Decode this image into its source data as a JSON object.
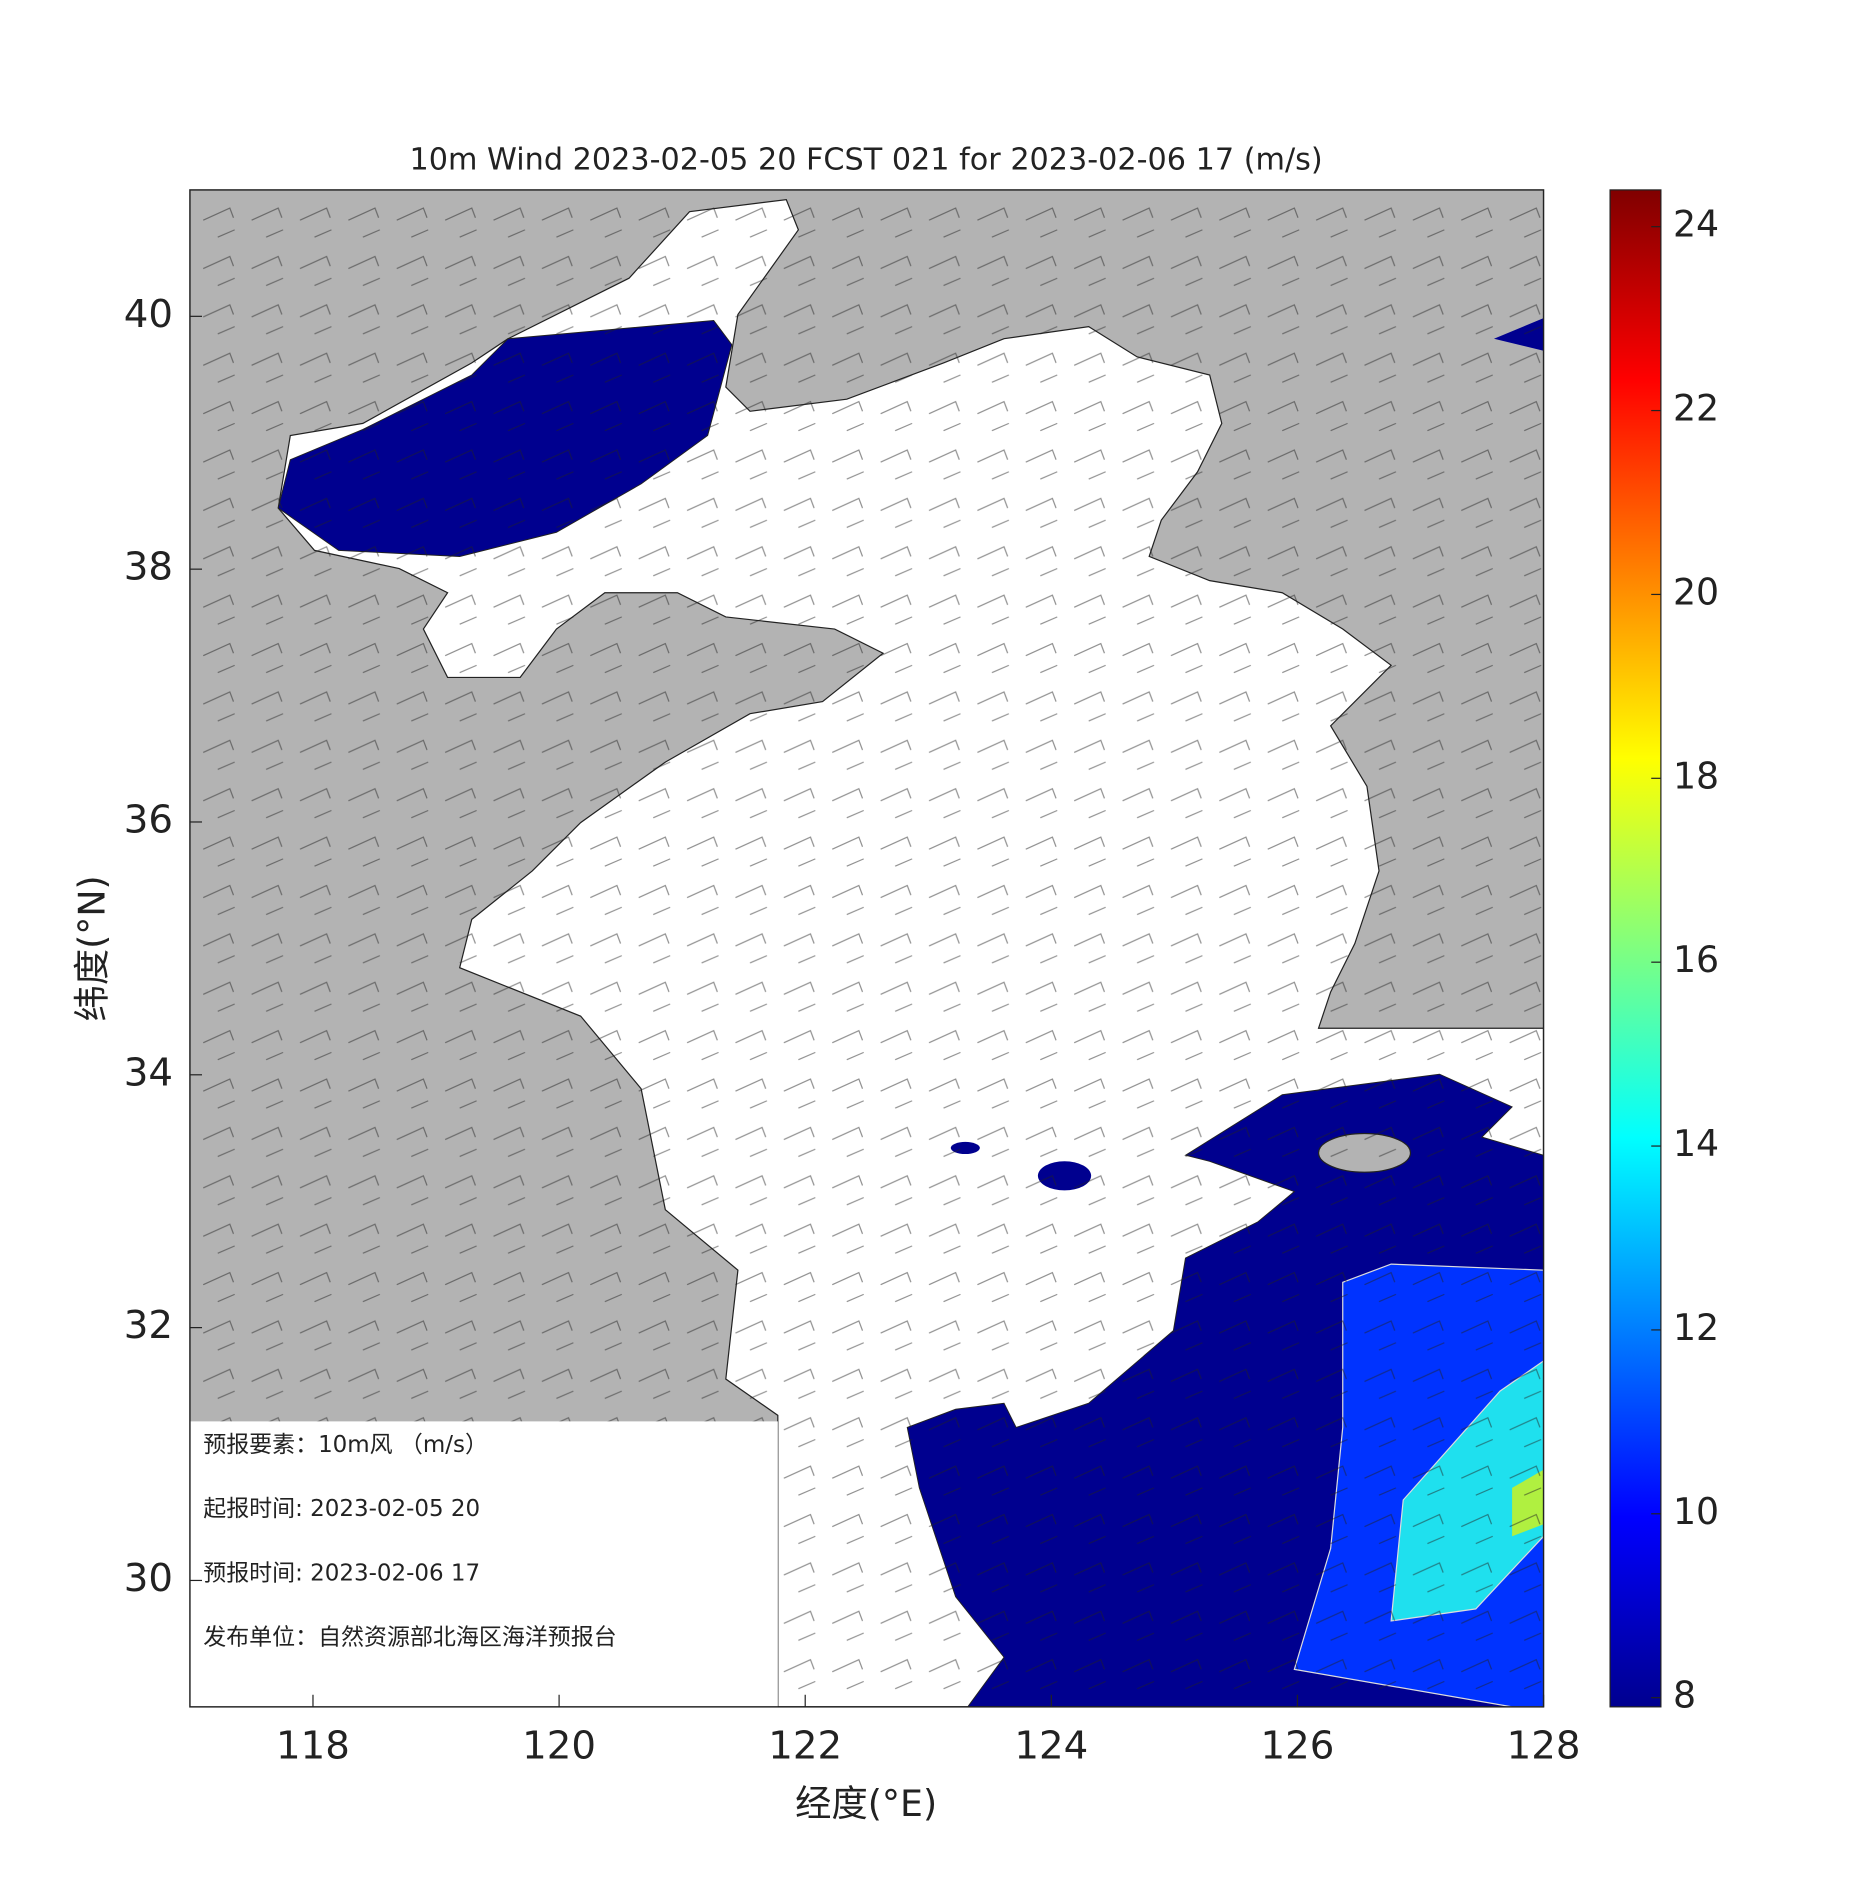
{
  "chart_data": {
    "type": "map",
    "title": "10m Wind 2023-02-05 20 FCST 021 for 2023-02-06 17 (m/s)",
    "xlabel": "经度(°E)",
    "ylabel": "纬度(°N)",
    "xlim": [
      117,
      128
    ],
    "xticks": [
      118,
      120,
      122,
      124,
      126,
      128
    ],
    "ylim": [
      29,
      41
    ],
    "yticks": [
      30,
      32,
      34,
      36,
      38,
      40
    ],
    "colorbar": {
      "lim": [
        7.9,
        24.4
      ],
      "ticks": [
        8,
        10,
        12,
        14,
        16,
        18,
        20,
        22,
        24
      ]
    },
    "info": [
      "预报要素：10m风 （m/s）",
      "起报时间: 2023-02-05 20",
      "预报时间: 2023-02-06 17",
      "发布单位：自然资源部北海区海洋预报台"
    ]
  }
}
